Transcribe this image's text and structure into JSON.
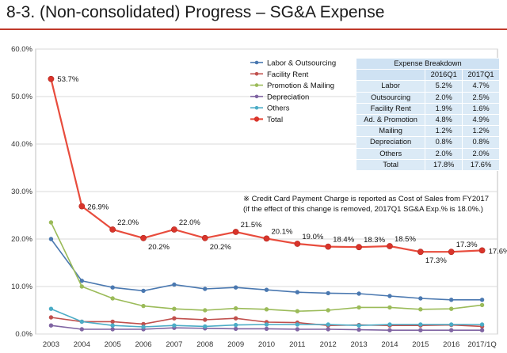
{
  "title": "8-3. (Non-consolidated) Progress – SG&A Expense",
  "note": {
    "line1": "※ Credit Card Payment Charge is reported as Cost of Sales from FY2017",
    "line2": "(if the effect of this change is removed, 2017Q1 SG&A Exp.% is 18.0%.)"
  },
  "breakdown": {
    "title": "Expense Breakdown",
    "columns": [
      "2016Q1",
      "2017Q1"
    ],
    "rows": [
      {
        "label": "Labor",
        "values": [
          "5.2%",
          "4.7%"
        ]
      },
      {
        "label": "Outsourcing",
        "values": [
          "2.0%",
          "2.5%"
        ]
      },
      {
        "label": "Facility Rent",
        "values": [
          "1.9%",
          "1.6%"
        ]
      },
      {
        "label": "Ad. & Promotion",
        "values": [
          "4.8%",
          "4.9%"
        ]
      },
      {
        "label": "Mailing",
        "values": [
          "1.2%",
          "1.2%"
        ]
      },
      {
        "label": "Depreciation",
        "values": [
          "0.8%",
          "0.8%"
        ]
      },
      {
        "label": "Others",
        "values": [
          "2.0%",
          "2.0%"
        ]
      },
      {
        "label": "Total",
        "values": [
          "17.8%",
          "17.6%"
        ]
      }
    ]
  },
  "chart_data": {
    "type": "line",
    "title": "",
    "xlabel": "",
    "ylabel": "",
    "ylim": [
      0,
      60
    ],
    "grid": "horizontal",
    "legend_position": "top-center",
    "categories": [
      "2003",
      "2004",
      "2005",
      "2006",
      "2007",
      "2008",
      "2009",
      "2010",
      "2011",
      "2012",
      "2013",
      "2014",
      "2015",
      "2016",
      "2017/1Q"
    ],
    "y_ticks": [
      "0.0%",
      "10.0%",
      "20.0%",
      "30.0%",
      "40.0%",
      "50.0%",
      "60.0%"
    ],
    "series": [
      {
        "name": "Labor & Outsourcing",
        "color": "#4a78b0",
        "marker_color": "#4a78b0",
        "values": [
          20.0,
          11.2,
          9.8,
          9.1,
          10.4,
          9.5,
          9.8,
          9.3,
          8.8,
          8.6,
          8.5,
          8.0,
          7.5,
          7.2,
          7.2
        ]
      },
      {
        "name": "Facility Rent",
        "color": "#c0504d",
        "marker_color": "#c0504d",
        "values": [
          3.5,
          2.6,
          2.6,
          2.1,
          3.3,
          3.0,
          3.3,
          2.5,
          2.4,
          1.8,
          1.9,
          1.8,
          1.8,
          1.9,
          1.6
        ]
      },
      {
        "name": "Promotion & Mailing",
        "color": "#9bbb59",
        "marker_color": "#9bbb59",
        "values": [
          23.5,
          10.0,
          7.5,
          5.9,
          5.3,
          5.0,
          5.4,
          5.2,
          4.8,
          5.0,
          5.6,
          5.6,
          5.2,
          5.3,
          6.1
        ]
      },
      {
        "name": "Depreciation",
        "color": "#7f64a2",
        "marker_color": "#7f64a2",
        "values": [
          1.8,
          1.0,
          1.0,
          1.0,
          1.3,
          1.2,
          1.1,
          1.1,
          1.0,
          1.0,
          0.9,
          0.8,
          0.8,
          0.8,
          0.8
        ]
      },
      {
        "name": "Others",
        "color": "#4bacc6",
        "marker_color": "#4bacc6",
        "values": [
          5.3,
          2.6,
          1.8,
          1.5,
          1.8,
          1.6,
          1.9,
          2.0,
          2.0,
          2.0,
          1.8,
          2.0,
          2.0,
          2.0,
          2.0
        ]
      },
      {
        "name": "Total",
        "color": "#e84c3d",
        "marker_color": "#d9342b",
        "values": [
          53.7,
          26.9,
          22.0,
          20.2,
          22.0,
          20.2,
          21.5,
          20.1,
          19.0,
          18.4,
          18.3,
          18.5,
          17.3,
          17.3,
          17.6
        ]
      }
    ],
    "data_labels": [
      "53.7%",
      "26.9%",
      "22.0%",
      "20.2%",
      "22.0%",
      "20.2%",
      "21.5%",
      "20.1%",
      "19.0%",
      "18.4%",
      "18.3%",
      "18.5%",
      "17.3%",
      "17.3%",
      "17.6%"
    ]
  }
}
